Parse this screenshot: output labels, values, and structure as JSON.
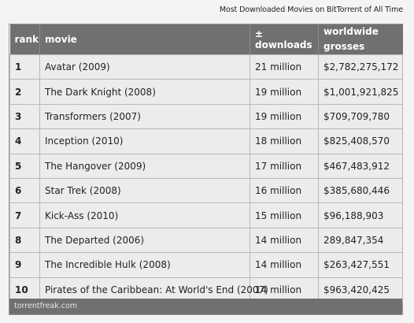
{
  "caption": "Most Downloaded Movies on BitTorrent of All Time",
  "table": {
    "headers": {
      "rank": "rank",
      "movie": "movie",
      "downloads": "± downloads",
      "grosses": "worldwide grosses"
    },
    "rows": [
      {
        "rank": "1",
        "movie": "Avatar (2009)",
        "downloads": "21 million",
        "grosses": "$2,782,275,172"
      },
      {
        "rank": "2",
        "movie": "The Dark Knight (2008)",
        "downloads": "19 million",
        "grosses": "$1,001,921,825"
      },
      {
        "rank": "3",
        "movie": "Transformers (2007)",
        "downloads": "19 million",
        "grosses": "$709,709,780"
      },
      {
        "rank": "4",
        "movie": "Inception (2010)",
        "downloads": "18 million",
        "grosses": "$825,408,570"
      },
      {
        "rank": "5",
        "movie": "The Hangover (2009)",
        "downloads": "17 million",
        "grosses": "$467,483,912"
      },
      {
        "rank": "6",
        "movie": "Star Trek (2008)",
        "downloads": "16 million",
        "grosses": "$385,680,446"
      },
      {
        "rank": "7",
        "movie": "Kick-Ass (2010)",
        "downloads": "15 million",
        "grosses": "$96,188,903"
      },
      {
        "rank": "8",
        "movie": "The Departed (2006)",
        "downloads": "14 million",
        "grosses": "289,847,354"
      },
      {
        "rank": "9",
        "movie": "The Incredible Hulk (2008)",
        "downloads": "14 million",
        "grosses": "$263,427,551"
      },
      {
        "rank": "10",
        "movie": "Pirates of the Caribbean: At World's End (2007)",
        "downloads": "14 million",
        "grosses": "$963,420,425"
      }
    ]
  },
  "footer": "torrentfreak.com"
}
